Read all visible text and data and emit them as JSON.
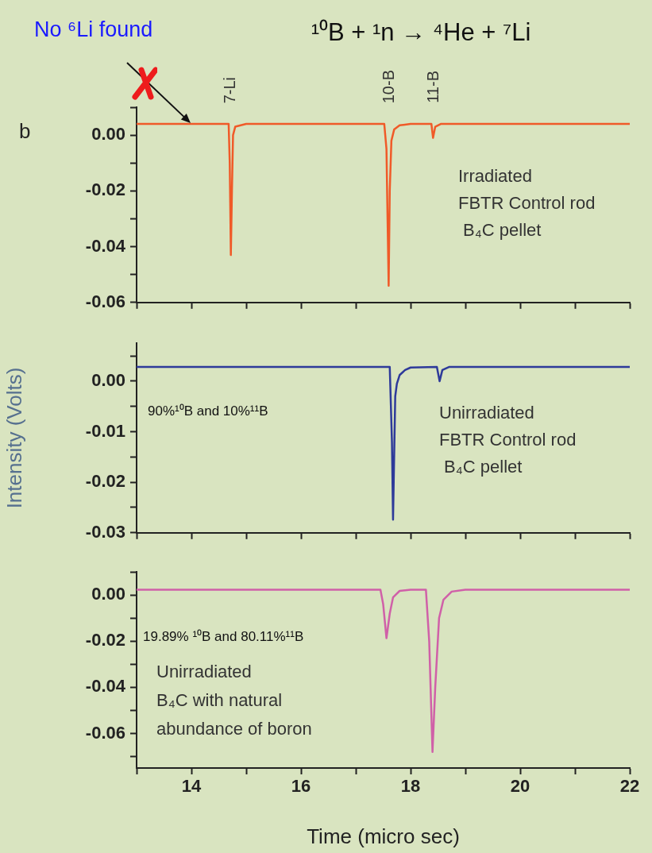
{
  "chart_data": [
    {
      "type": "line",
      "title": "¹⁰B + ¹n → ⁴He + ⁷Li",
      "tick_labels": "y",
      "grid": false,
      "marker": "none",
      "line_style": "solid",
      "xlim": [
        13,
        22
      ],
      "xticks": [
        {
          "value": 13,
          "label": null
        },
        14,
        {
          "value": 15,
          "label": null
        },
        16,
        {
          "value": 17,
          "label": null
        },
        18,
        {
          "value": 19,
          "label": null
        },
        20,
        {
          "value": 21,
          "label": null
        },
        22
      ],
      "ylim": [
        -0.06,
        0.01
      ],
      "yticks": [
        {
          "value": 0.01,
          "label": null
        },
        {
          "value": 0,
          "label": "0.00"
        },
        {
          "value": -0.01,
          "label": null
        },
        {
          "value": -0.02,
          "label": "-0.02"
        },
        {
          "value": -0.03,
          "label": null
        },
        {
          "value": -0.04,
          "label": "-0.04"
        },
        {
          "value": -0.05,
          "label": null
        },
        {
          "value": -0.06,
          "label": "-0.06"
        }
      ],
      "annotations": [
        "b",
        "No ⁶Li found",
        "7-Li",
        "10-B",
        "11-B",
        "Irradiated\nFBTR Control rod\n B₄C pellet"
      ],
      "series": [
        {
          "color": "#f05a28",
          "x": [
            13,
            14.68,
            14.7,
            14.72,
            14.74,
            14.76,
            14.8,
            14.9,
            15,
            17.52,
            17.56,
            17.58,
            17.6,
            17.62,
            17.65,
            17.7,
            17.8,
            18,
            18.38,
            18.41,
            18.45,
            18.55,
            22
          ],
          "values": [
            0.004,
            0.004,
            -0.01,
            -0.043,
            -0.02,
            0,
            0.003,
            0.0035,
            0.004,
            0.004,
            -0.005,
            -0.03,
            -0.054,
            -0.02,
            -0.002,
            0.002,
            0.0035,
            0.004,
            0.004,
            -0.001,
            0.003,
            0.004,
            0.004
          ]
        }
      ]
    },
    {
      "type": "line",
      "ylabel": "Intensity (Volts)",
      "tick_labels": "y",
      "grid": false,
      "marker": "none",
      "line_style": "solid",
      "xlim": [
        13,
        22
      ],
      "xticks": [
        {
          "value": 13,
          "label": null
        },
        14,
        {
          "value": 15,
          "label": null
        },
        16,
        {
          "value": 17,
          "label": null
        },
        18,
        {
          "value": 19,
          "label": null
        },
        20,
        {
          "value": 21,
          "label": null
        },
        22
      ],
      "ylim": [
        -0.03,
        0.0075
      ],
      "yticks": [
        {
          "value": 0.005,
          "label": null
        },
        {
          "value": 0,
          "label": "0.00"
        },
        {
          "value": -0.005,
          "label": null
        },
        {
          "value": -0.01,
          "label": "-0.01"
        },
        {
          "value": -0.015,
          "label": null
        },
        {
          "value": -0.02,
          "label": "-0.02"
        },
        {
          "value": -0.025,
          "label": null
        },
        {
          "value": -0.03,
          "label": "-0.03"
        }
      ],
      "annotations": [
        "90%¹⁰B and 10%¹¹B",
        "Unirradiated\nFBTR Control rod\n B₄C pellet"
      ],
      "series": [
        {
          "color": "#2e3a9a",
          "x": [
            13,
            17.62,
            17.66,
            17.68,
            17.7,
            17.72,
            17.75,
            17.8,
            17.9,
            18,
            18.48,
            18.53,
            18.58,
            18.7,
            22
          ],
          "values": [
            0.0028,
            0.0028,
            -0.012,
            -0.0274,
            -0.015,
            -0.003,
            -0.0005,
            0.0012,
            0.0022,
            0.0027,
            0.0028,
            0,
            0.0022,
            0.0028,
            0.0028
          ]
        }
      ]
    },
    {
      "type": "line",
      "xlabel": "Time (micro sec)",
      "grid": false,
      "marker": "none",
      "line_style": "solid",
      "xlim": [
        13,
        22
      ],
      "xticks": [
        {
          "value": 13,
          "label": null
        },
        14,
        {
          "value": 15,
          "label": null
        },
        16,
        {
          "value": 17,
          "label": null
        },
        18,
        {
          "value": 19,
          "label": null
        },
        20,
        {
          "value": 21,
          "label": null
        },
        22
      ],
      "ylim": [
        -0.075,
        0.01
      ],
      "yticks": [
        {
          "value": 0.01,
          "label": null
        },
        {
          "value": 0,
          "label": "0.00"
        },
        {
          "value": -0.01,
          "label": null
        },
        {
          "value": -0.02,
          "label": "-0.02"
        },
        {
          "value": -0.03,
          "label": null
        },
        {
          "value": -0.04,
          "label": "-0.04"
        },
        {
          "value": -0.05,
          "label": null
        },
        {
          "value": -0.06,
          "label": "-0.06"
        },
        {
          "value": -0.07,
          "label": null
        }
      ],
      "annotations": [
        "19.89% ¹⁰B and 80.11%¹¹B",
        "Unirradiated\nB₄C with natural\nabundance of boron"
      ],
      "series": [
        {
          "color": "#d060a8",
          "x": [
            13,
            17.45,
            17.5,
            17.56,
            17.62,
            17.68,
            17.8,
            18,
            18.28,
            18.34,
            18.4,
            18.45,
            18.52,
            18.6,
            18.75,
            19,
            22
          ],
          "values": [
            0.0023,
            0.0023,
            -0.004,
            -0.0187,
            -0.008,
            -0.001,
            0.0018,
            0.0023,
            0.0023,
            -0.02,
            -0.068,
            -0.04,
            -0.01,
            -0.002,
            0.0015,
            0.0023,
            0.0023
          ]
        }
      ]
    }
  ]
}
